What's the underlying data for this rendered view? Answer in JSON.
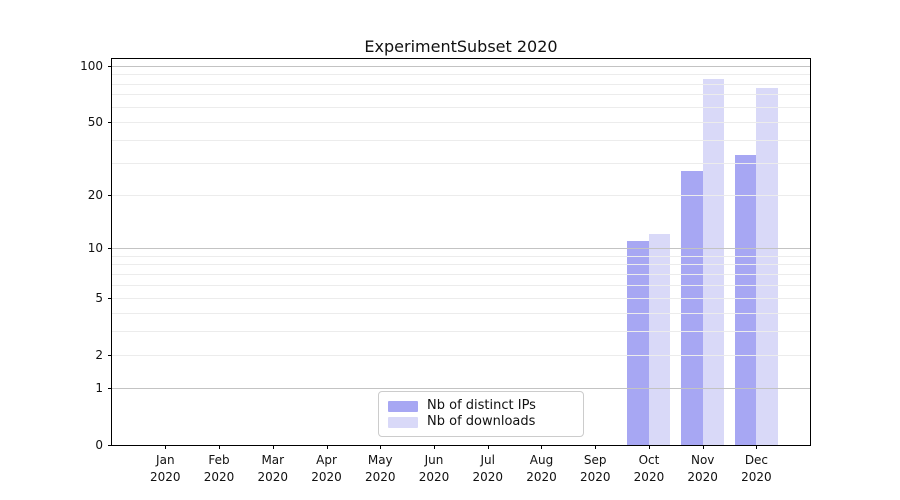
{
  "chart_data": {
    "type": "bar",
    "title": "ExperimentSubset 2020",
    "categories": [
      "Jan 2020",
      "Feb 2020",
      "Mar 2020",
      "Apr 2020",
      "May 2020",
      "Jun 2020",
      "Jul 2020",
      "Aug 2020",
      "Sep 2020",
      "Oct 2020",
      "Nov 2020",
      "Dec 2020"
    ],
    "series": [
      {
        "name": "Nb of distinct IPs",
        "color": "#a7a7f3",
        "values": [
          0,
          0,
          0,
          0,
          0,
          0,
          0,
          0,
          0,
          11,
          27,
          33
        ]
      },
      {
        "name": "Nb of downloads",
        "color": "#d9d9f8",
        "values": [
          0,
          0,
          0,
          0,
          0,
          0,
          0,
          0,
          0,
          12,
          85,
          76
        ]
      }
    ],
    "xlabel": "",
    "ylabel": "",
    "yscale": "log1p",
    "ylim": [
      0,
      100
    ],
    "yticks": [
      0,
      1,
      2,
      5,
      10,
      20,
      50,
      100
    ],
    "major_gridlines": [
      1,
      10,
      100
    ],
    "minor_gridlines": [
      2,
      3,
      4,
      5,
      6,
      7,
      8,
      9,
      20,
      30,
      40,
      50,
      60,
      70,
      80,
      90
    ],
    "grid": "on",
    "legend_position": "lower center"
  },
  "colors": {
    "major_grid": "#c3c3c3",
    "minor_grid": "#ececec",
    "spine": "#000000",
    "text": "#111111"
  }
}
